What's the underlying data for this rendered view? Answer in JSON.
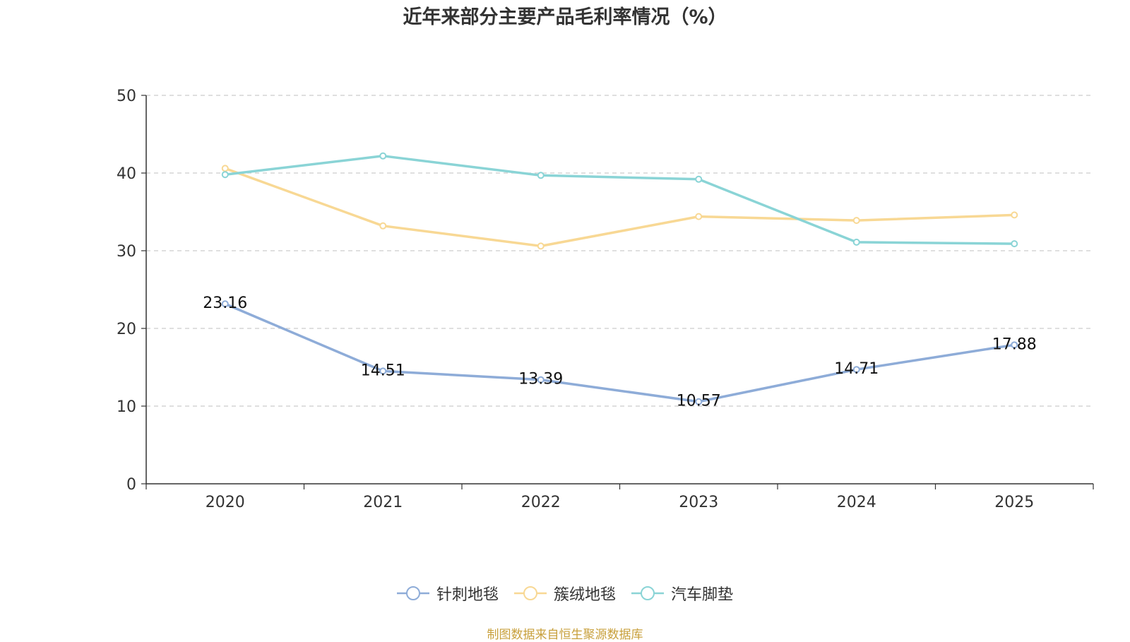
{
  "title": "近年来部分主要产品毛利率情况（%）",
  "source": "制图数据来自恒生聚源数据库",
  "chart_data": {
    "type": "line",
    "categories": [
      "2020",
      "2021",
      "2022",
      "2023",
      "2024",
      "2025"
    ],
    "ylim": [
      0,
      50
    ],
    "yticks": [
      0,
      10,
      20,
      30,
      40,
      50
    ],
    "grid": true,
    "legend_position": "bottom",
    "series": [
      {
        "name": "针刺地毯",
        "color": "#8eacd8",
        "show_labels": true,
        "values": [
          23.16,
          14.51,
          13.39,
          10.57,
          14.71,
          17.88
        ]
      },
      {
        "name": "簇绒地毯",
        "color": "#f8d894",
        "show_labels": false,
        "values": [
          40.6,
          33.2,
          30.6,
          34.4,
          33.9,
          34.6
        ]
      },
      {
        "name": "汽车脚垫",
        "color": "#8ad4d6",
        "show_labels": false,
        "values": [
          39.8,
          42.2,
          39.7,
          39.2,
          31.1,
          30.9
        ]
      }
    ]
  }
}
